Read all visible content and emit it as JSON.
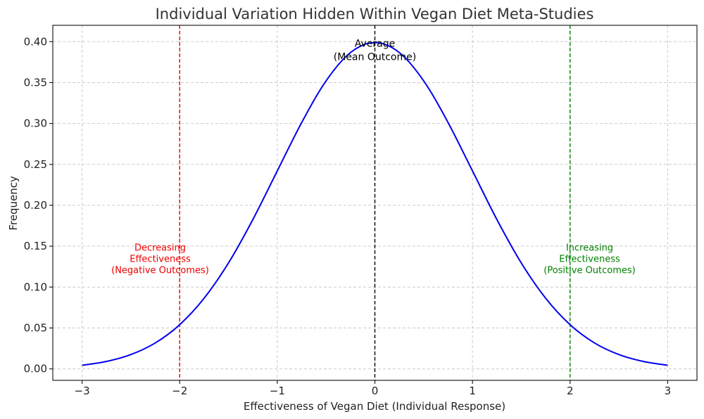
{
  "chart_data": {
    "type": "line",
    "title": "Individual Variation Hidden Within Vegan Diet Meta-Studies",
    "xlabel": "Effectiveness of Vegan Diet (Individual Response)",
    "ylabel": "Frequency",
    "xlim": [
      -3.3,
      3.3
    ],
    "ylim": [
      -0.014,
      0.42
    ],
    "grid": true,
    "x_ticks": [
      -3,
      -2,
      -1,
      0,
      1,
      2,
      3
    ],
    "x_tick_labels": [
      "−3",
      "−2",
      "−1",
      "0",
      "1",
      "2",
      "3"
    ],
    "y_ticks": [
      0.0,
      0.05,
      0.1,
      0.15,
      0.2,
      0.25,
      0.3,
      0.35,
      0.4
    ],
    "y_tick_labels": [
      "0.00",
      "0.05",
      "0.10",
      "0.15",
      "0.20",
      "0.25",
      "0.30",
      "0.35",
      "0.40"
    ],
    "series": [
      {
        "color": "#0000ee",
        "x": [
          -3.0,
          -2.75,
          -2.5,
          -2.25,
          -2.0,
          -1.75,
          -1.5,
          -1.25,
          -1.0,
          -0.75,
          -0.5,
          -0.25,
          0.0,
          0.25,
          0.5,
          0.75,
          1.0,
          1.25,
          1.5,
          1.75,
          2.0,
          2.25,
          2.5,
          2.75,
          3.0
        ],
        "values": [
          0.0044,
          0.0091,
          0.0175,
          0.0317,
          0.054,
          0.0863,
          0.1295,
          0.1826,
          0.242,
          0.3011,
          0.3521,
          0.3867,
          0.3989,
          0.3867,
          0.3521,
          0.3011,
          0.242,
          0.1826,
          0.1295,
          0.0863,
          0.054,
          0.0317,
          0.0175,
          0.0091,
          0.0044
        ]
      }
    ],
    "vlines": [
      {
        "x": -2,
        "color": "#ee0000"
      },
      {
        "x": 0,
        "color": "#000000"
      },
      {
        "x": 2,
        "color": "#008000"
      }
    ],
    "annotations": [
      {
        "lines": [
          "Average",
          "(Mean Outcome)"
        ],
        "x": 0,
        "y": 0.39,
        "color": "#000000"
      },
      {
        "lines": [
          "Decreasing",
          "Effectiveness",
          "(Negative Outcomes)"
        ],
        "x": -2.2,
        "y": 0.135,
        "color": "#ee0000"
      },
      {
        "lines": [
          "Increasing",
          "Effectiveness",
          "(Positive Outcomes)"
        ],
        "x": 2.2,
        "y": 0.135,
        "color": "#008000"
      }
    ]
  }
}
